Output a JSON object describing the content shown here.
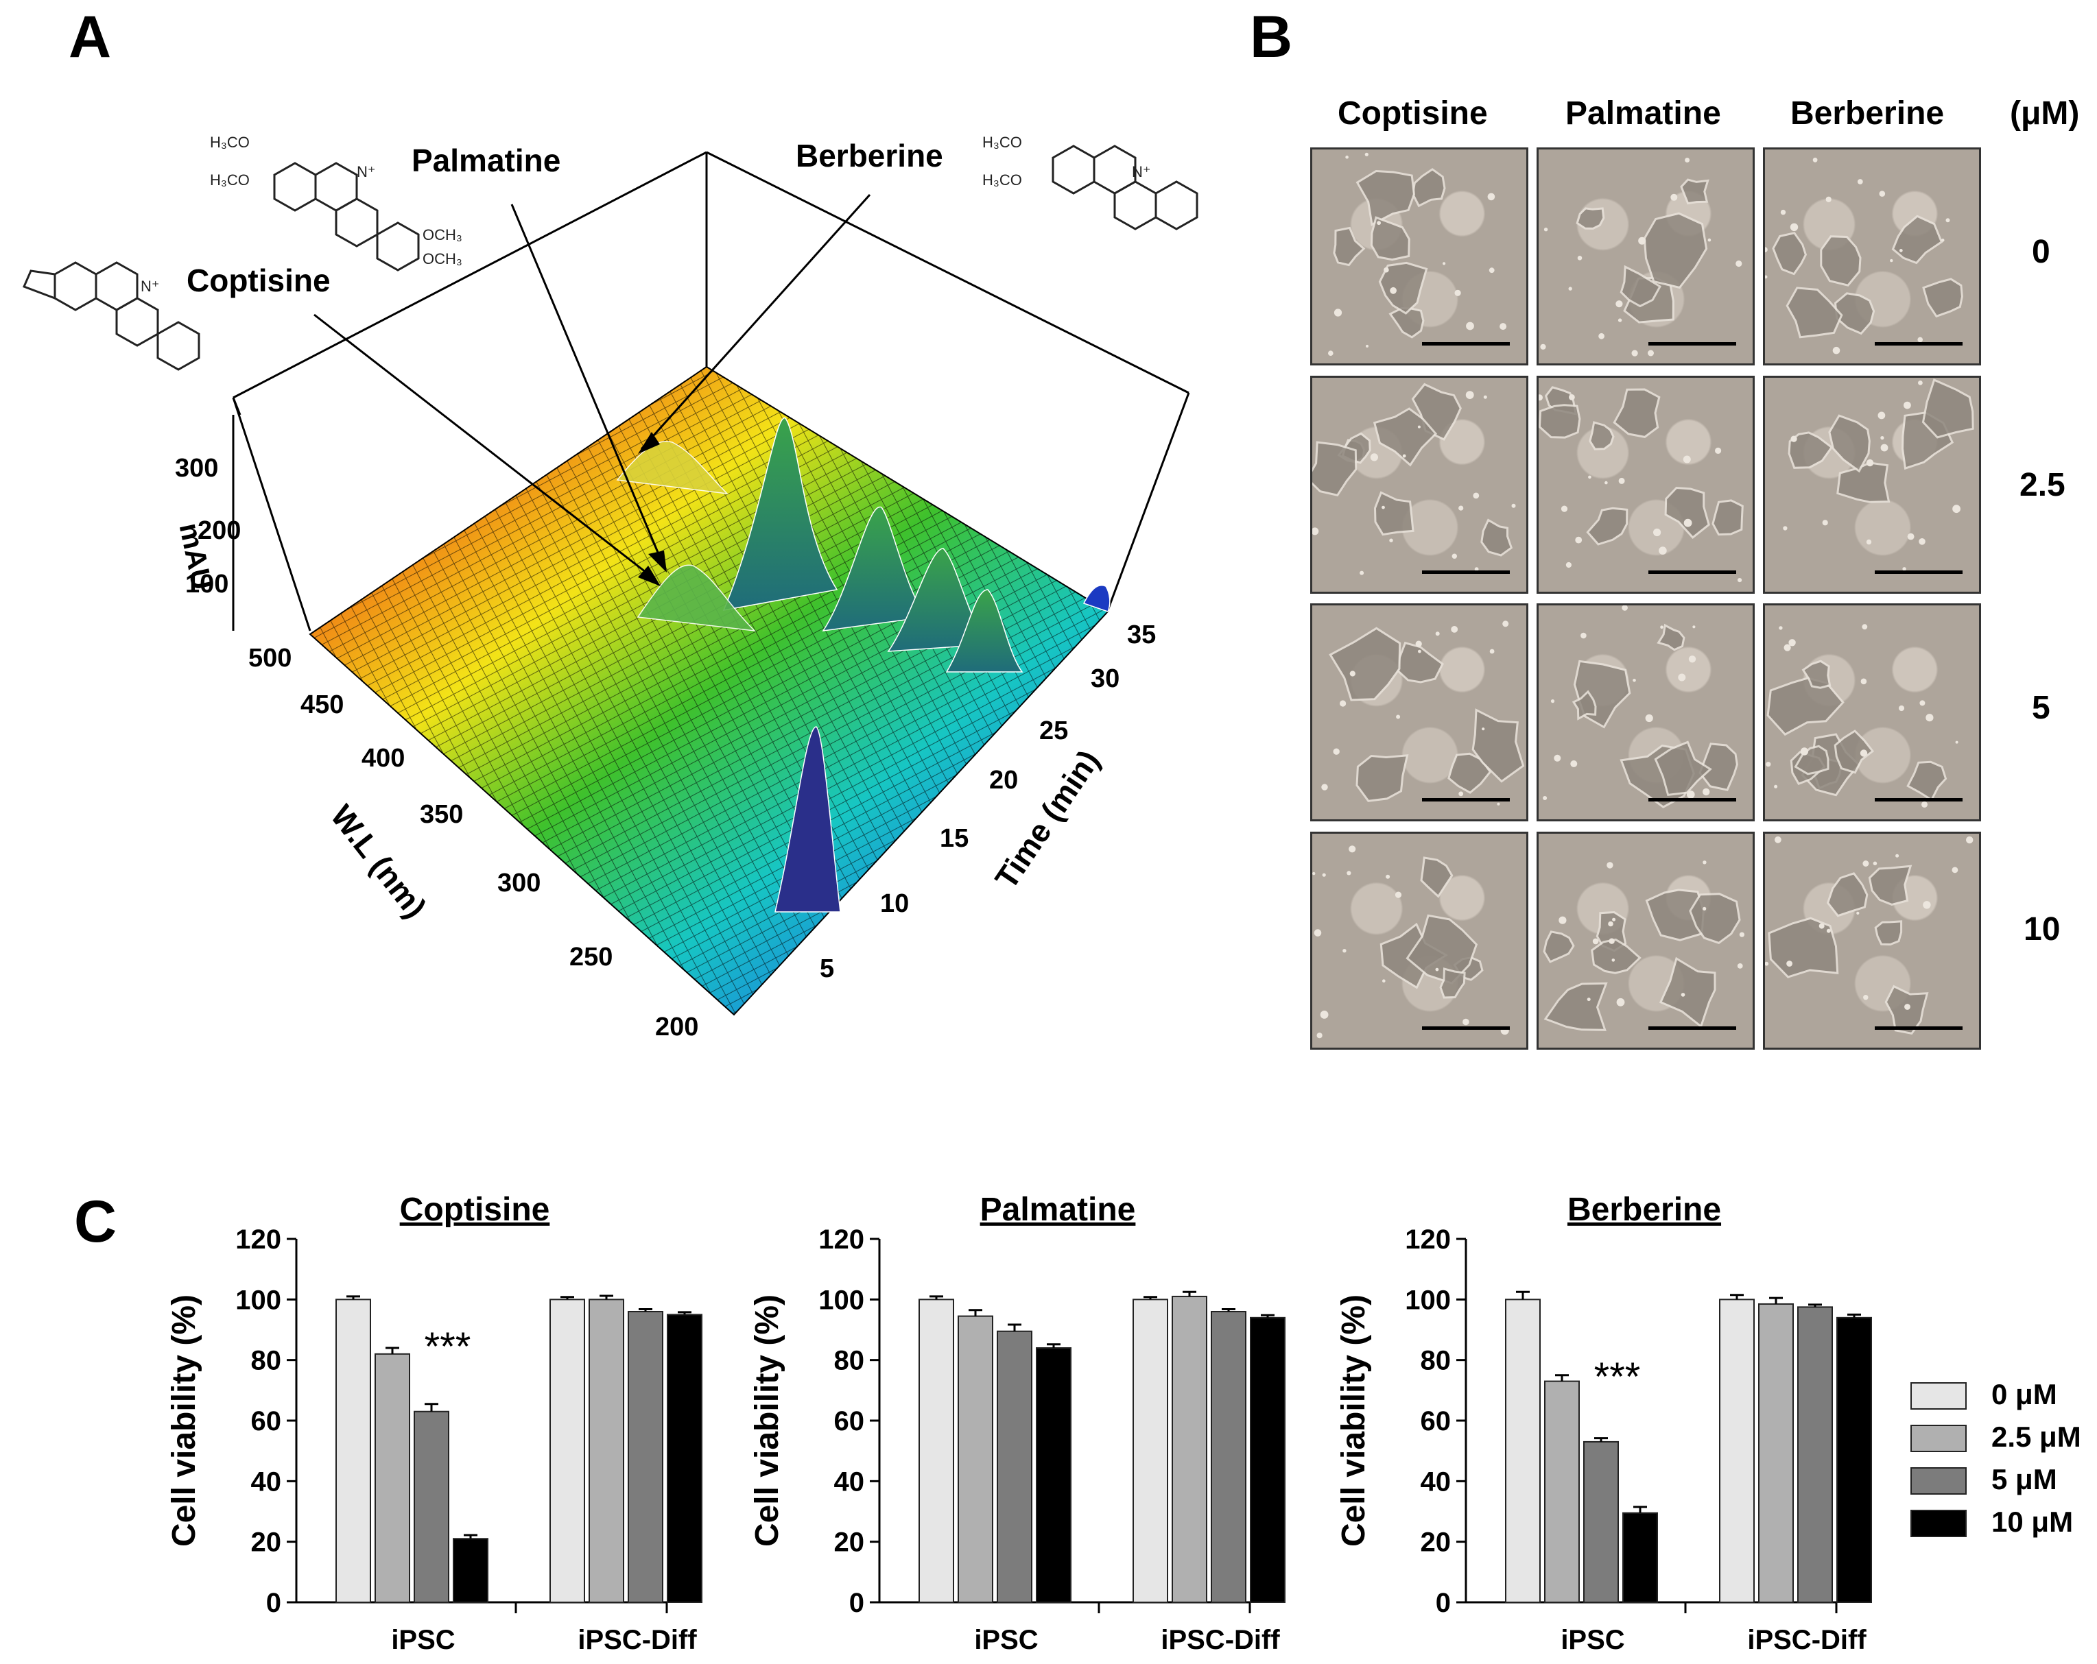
{
  "panels": {
    "a": "A",
    "b": "B",
    "c": "C"
  },
  "panelA": {
    "compounds": [
      "Palmatine",
      "Berberine",
      "Coptisine"
    ],
    "chem_labels": {
      "palm_h3co_1": "H₃CO",
      "palm_h3co_2": "H₃CO",
      "palm_och3_1": "OCH₃",
      "palm_och3_2": "OCH₃",
      "berb_h3co_1": "H₃CO",
      "berb_h3co_2": "H₃CO",
      "n_plus": "N⁺"
    },
    "mau_label": "mAU",
    "mau_ticks": [
      "300",
      "200",
      "100"
    ],
    "wl_label": "W.L (nm)",
    "wl_ticks": [
      "500",
      "450",
      "400",
      "350",
      "300",
      "250",
      "200"
    ],
    "time_label": "Time (min)",
    "time_ticks": [
      "35",
      "30",
      "25",
      "20",
      "15",
      "10",
      "5"
    ]
  },
  "panelB": {
    "columns": [
      "Coptisine",
      "Palmatine",
      "Berberine"
    ],
    "unit": "(μM)",
    "rows": [
      "0",
      "2.5",
      "5",
      "10"
    ]
  },
  "chart_data": [
    {
      "type": "bar",
      "title": "Coptisine",
      "xlabel": "",
      "ylabel": "Cell viability (%)",
      "ylim": [
        0,
        120
      ],
      "yticks": [
        "0",
        "20",
        "40",
        "60",
        "80",
        "100",
        "120"
      ],
      "categories": [
        "iPSC",
        "iPSC-Diff"
      ],
      "series": [
        {
          "name": "0 μM",
          "values": [
            100,
            100
          ],
          "errors": [
            1,
            0.8
          ]
        },
        {
          "name": "2.5 μM",
          "values": [
            82,
            100
          ],
          "errors": [
            2,
            1.2
          ]
        },
        {
          "name": "5 μM",
          "values": [
            63,
            96
          ],
          "errors": [
            2.5,
            0.8
          ]
        },
        {
          "name": "10 μM",
          "values": [
            21,
            95
          ],
          "errors": [
            1.2,
            0.8
          ]
        }
      ],
      "annotation": "***"
    },
    {
      "type": "bar",
      "title": "Palmatine",
      "xlabel": "",
      "ylabel": "Cell viability (%)",
      "ylim": [
        0,
        120
      ],
      "yticks": [
        "0",
        "20",
        "40",
        "60",
        "80",
        "100",
        "120"
      ],
      "categories": [
        "iPSC",
        "iPSC-Diff"
      ],
      "series": [
        {
          "name": "0 μM",
          "values": [
            100,
            100
          ],
          "errors": [
            1,
            0.8
          ]
        },
        {
          "name": "2.5 μM",
          "values": [
            94.5,
            101
          ],
          "errors": [
            2,
            1.5
          ]
        },
        {
          "name": "5 μM",
          "values": [
            89.5,
            96
          ],
          "errors": [
            2.2,
            0.8
          ]
        },
        {
          "name": "10 μM",
          "values": [
            84,
            94
          ],
          "errors": [
            1.2,
            0.8
          ]
        }
      ],
      "annotation": ""
    },
    {
      "type": "bar",
      "title": "Berberine",
      "xlabel": "",
      "ylabel": "Cell viability (%)",
      "ylim": [
        0,
        120
      ],
      "yticks": [
        "0",
        "20",
        "40",
        "60",
        "80",
        "100",
        "120"
      ],
      "categories": [
        "iPSC",
        "iPSC-Diff"
      ],
      "series": [
        {
          "name": "0 μM",
          "values": [
            100,
            100
          ],
          "errors": [
            2.5,
            1.5
          ]
        },
        {
          "name": "2.5 μM",
          "values": [
            73,
            98.5
          ],
          "errors": [
            2,
            2
          ]
        },
        {
          "name": "5 μM",
          "values": [
            53,
            97.5
          ],
          "errors": [
            1.2,
            0.8
          ]
        },
        {
          "name": "10 μM",
          "values": [
            29.5,
            94
          ],
          "errors": [
            2,
            1
          ]
        }
      ],
      "annotation": "***"
    }
  ],
  "legend": {
    "items": [
      "0 μM",
      "2.5 μM",
      "5 μM",
      "10 μM"
    ],
    "colors": [
      "#e6e6e6",
      "#b0b0b0",
      "#7c7c7c",
      "#000000"
    ]
  },
  "bar_stroke": "#222222"
}
